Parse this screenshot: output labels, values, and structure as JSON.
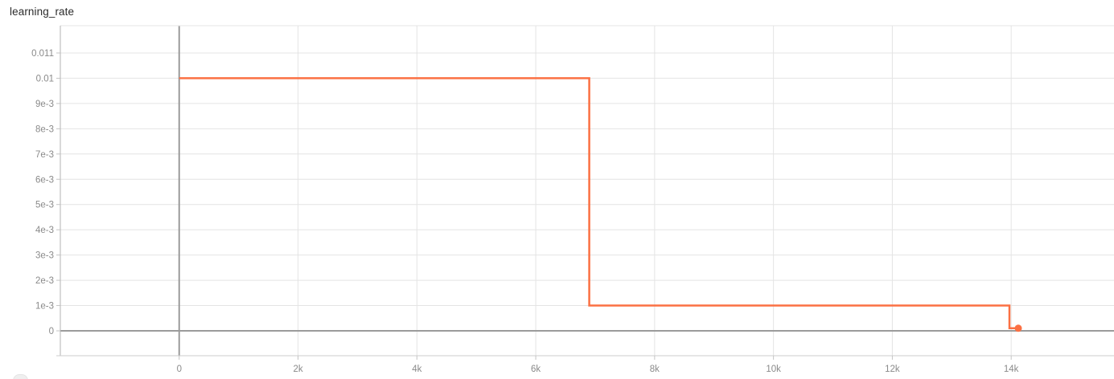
{
  "panel": {
    "title": "learning_rate"
  },
  "colors": {
    "accent": "#fb7043",
    "grid": "#e4e4e4",
    "axis_zero": "#9b9b9b",
    "plot_border": "#b3b3b3",
    "axis_line": "#cccccc",
    "tick": "#c4c4c4",
    "tick_text": "#8a8a8a",
    "title_text": "#2b2b2b"
  },
  "chart_data": {
    "type": "line",
    "line_style": "step",
    "title": "learning_rate",
    "xlabel": "",
    "ylabel": "",
    "grid": true,
    "legend_position": "none",
    "xlim": [
      -2000,
      15730
    ],
    "ylim": [
      -0.000986,
      0.01208
    ],
    "x_ticks": [
      {
        "value": 0,
        "label": "0"
      },
      {
        "value": 2000,
        "label": "2k"
      },
      {
        "value": 4000,
        "label": "4k"
      },
      {
        "value": 6000,
        "label": "6k"
      },
      {
        "value": 8000,
        "label": "8k"
      },
      {
        "value": 10000,
        "label": "10k"
      },
      {
        "value": 12000,
        "label": "12k"
      },
      {
        "value": 14000,
        "label": "14k"
      }
    ],
    "y_ticks": [
      {
        "value": 0,
        "label": "0"
      },
      {
        "value": 0.001,
        "label": "1e-3"
      },
      {
        "value": 0.002,
        "label": "2e-3"
      },
      {
        "value": 0.003,
        "label": "3e-3"
      },
      {
        "value": 0.004,
        "label": "4e-3"
      },
      {
        "value": 0.005,
        "label": "5e-3"
      },
      {
        "value": 0.006,
        "label": "6e-3"
      },
      {
        "value": 0.007,
        "label": "7e-3"
      },
      {
        "value": 0.008,
        "label": "8e-3"
      },
      {
        "value": 0.009,
        "label": "9e-3"
      },
      {
        "value": 0.01,
        "label": "0.01"
      },
      {
        "value": 0.011,
        "label": "0.011"
      }
    ],
    "series": [
      {
        "name": "learning_rate",
        "color": "#fb7043",
        "end_marker": true,
        "points": [
          [
            0,
            0.01
          ],
          [
            6900,
            0.01
          ],
          [
            6900,
            0.001
          ],
          [
            13970,
            0.001
          ],
          [
            13970,
            0.0001
          ],
          [
            14120,
            0.0001
          ]
        ]
      }
    ]
  }
}
